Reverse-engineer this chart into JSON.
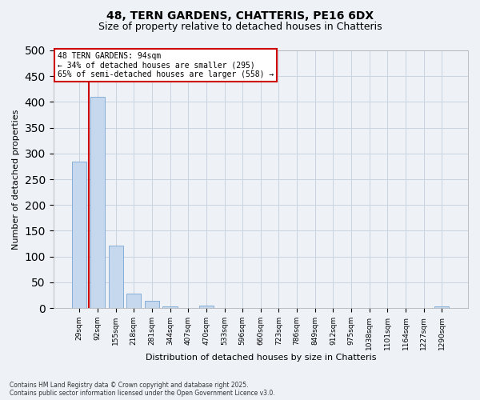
{
  "title1": "48, TERN GARDENS, CHATTERIS, PE16 6DX",
  "title2": "Size of property relative to detached houses in Chatteris",
  "xlabel": "Distribution of detached houses by size in Chatteris",
  "ylabel": "Number of detached properties",
  "categories": [
    "29sqm",
    "92sqm",
    "155sqm",
    "218sqm",
    "281sqm",
    "344sqm",
    "407sqm",
    "470sqm",
    "533sqm",
    "596sqm",
    "660sqm",
    "723sqm",
    "786sqm",
    "849sqm",
    "912sqm",
    "975sqm",
    "1038sqm",
    "1101sqm",
    "1164sqm",
    "1227sqm",
    "1290sqm"
  ],
  "values": [
    285,
    410,
    122,
    28,
    14,
    3,
    0,
    5,
    0,
    0,
    0,
    0,
    0,
    0,
    0,
    0,
    0,
    0,
    0,
    0,
    4
  ],
  "bar_color": "#c5d8ee",
  "bar_edge_color": "#6699cc",
  "grid_color": "#c8d4e0",
  "vline_x": 0.5,
  "vline_color": "#cc0000",
  "annotation_text": "48 TERN GARDENS: 94sqm\n← 34% of detached houses are smaller (295)\n65% of semi-detached houses are larger (558) →",
  "annotation_box_edgecolor": "#cc0000",
  "annotation_fontsize": 7,
  "ylim": [
    0,
    500
  ],
  "yticks": [
    0,
    50,
    100,
    150,
    200,
    250,
    300,
    350,
    400,
    450,
    500
  ],
  "footnote": "Contains HM Land Registry data © Crown copyright and database right 2025.\nContains public sector information licensed under the Open Government Licence v3.0.",
  "bg_color": "#eef2f7",
  "title1_fontsize": 10,
  "title2_fontsize": 9,
  "ylabel_fontsize": 8,
  "xlabel_fontsize": 8,
  "tick_fontsize": 6.5,
  "footnote_fontsize": 5.5
}
